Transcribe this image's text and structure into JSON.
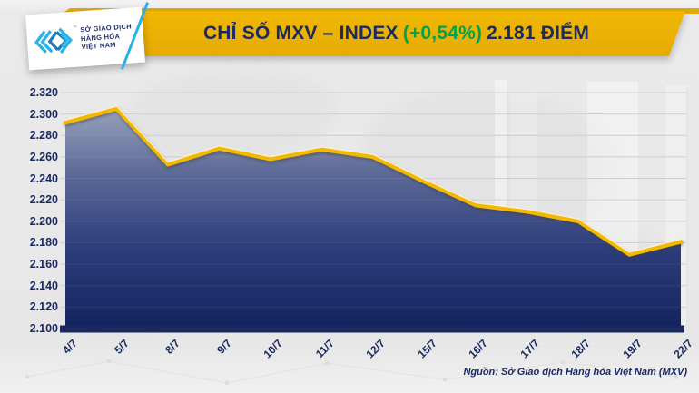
{
  "header": {
    "logo": {
      "lines": [
        "SỞ GIAO DỊCH",
        "HÀNG HÓA",
        "VIỆT NAM"
      ],
      "tm": "™"
    },
    "title_main": "CHỈ SỐ MXV – INDEX",
    "title_change": "(+0,54%)",
    "title_value": "2.181 ĐIỂM"
  },
  "footer": {
    "source": "Nguồn: Sở Giao dịch Hàng hóa Việt Nam (MXV)"
  },
  "colors": {
    "banner_gold": "#ECB10A",
    "navy_text": "#1A2B63",
    "green_change": "#00A24E",
    "line_gold": "#F3B806",
    "line_highlight": "#FFF5D8",
    "grid": "#C7CBD7",
    "axis_bar": "#19295F",
    "fill_top": "#97A2BB",
    "fill_mid1": "#5F6C99",
    "fill_mid2": "#2E3F7C",
    "fill_bottom": "#13235E",
    "logo_cyan": "#29B2E6",
    "background": "#E9E9E9"
  },
  "chart_data": {
    "type": "area",
    "title": "Chỉ số MXV – INDEX (+0,54%) 2.181 điểm",
    "categories": [
      "4/7",
      "5/7",
      "8/7",
      "9/7",
      "10/7",
      "11/7",
      "12/7",
      "15/7",
      "16/7",
      "17/7",
      "18/7",
      "19/7",
      "22/7"
    ],
    "values": [
      2292,
      2305,
      2253,
      2268,
      2258,
      2267,
      2260,
      2237,
      2215,
      2209,
      2200,
      2169,
      2181
    ],
    "y_ticks": [
      "2.320",
      "2.300",
      "2.280",
      "2.260",
      "2.240",
      "2.220",
      "2.200",
      "2.180",
      "2.160",
      "2.140",
      "2.120",
      "2.100"
    ],
    "y_tick_step": 20,
    "ylim": [
      2100,
      2320
    ],
    "xlabel": "",
    "ylabel": "",
    "grid": true,
    "legend": "none",
    "tick_format": "thousands-dot",
    "last_value_label": "2.181"
  }
}
